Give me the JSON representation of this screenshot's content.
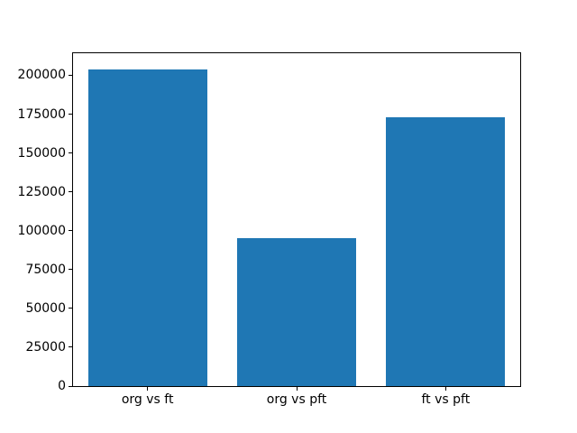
{
  "chart_data": {
    "type": "bar",
    "title": "",
    "xlabel": "",
    "ylabel": "",
    "categories": [
      "org vs ft",
      "org vs pft",
      "ft vs pft"
    ],
    "values": [
      204000,
      95000,
      173000
    ],
    "ylim": [
      0,
      214200
    ],
    "yticks": [
      0,
      25000,
      50000,
      75000,
      100000,
      125000,
      150000,
      175000,
      200000
    ],
    "ytick_labels": [
      "0",
      "25000",
      "50000",
      "75000",
      "100000",
      "125000",
      "150000",
      "175000",
      "200000"
    ],
    "bar_color": "#1f77b4",
    "bar_width_fraction": 0.8,
    "grid": false,
    "legend": null,
    "spine_color": "#000000",
    "background_color": "#ffffff",
    "tick_label_color": "#000000"
  }
}
